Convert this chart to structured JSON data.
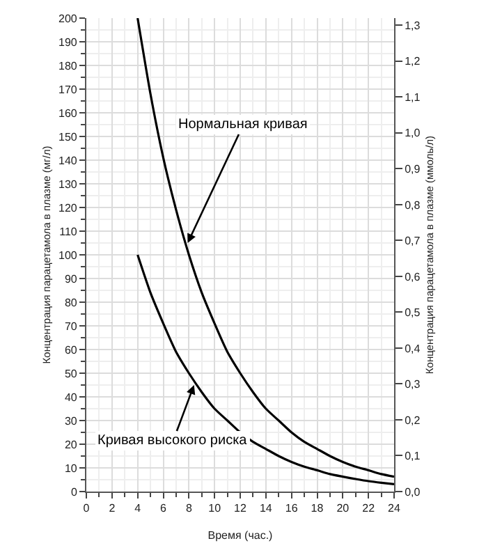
{
  "chart_data": {
    "type": "line",
    "xlabel": "Время (час.)",
    "ylabel": "Концентрация парацетамола в плазме (мг/л)",
    "y2label": "Концентрация парацетамола в плазме (ммоль/л)",
    "x": [
      4,
      5,
      6,
      7,
      8,
      9,
      10,
      11,
      12,
      13,
      14,
      15,
      16,
      17,
      18,
      19,
      20,
      21,
      22,
      23,
      24
    ],
    "series": [
      {
        "color": "#000000",
        "values": [
          200,
          168,
          141,
          119,
          100,
          84,
          71,
          59,
          50,
          42,
          35,
          30,
          25,
          21,
          18,
          15,
          12.5,
          10.5,
          9,
          7.4,
          6.3
        ]
      },
      {
        "color": "#000000",
        "values": [
          100,
          84,
          71,
          59,
          50,
          42,
          35,
          30,
          25,
          21,
          18,
          15,
          12.5,
          10.5,
          9,
          7.4,
          6.3,
          5.3,
          4.4,
          3.7,
          3.1
        ]
      }
    ],
    "annotations": [
      {
        "text": "Нормальная кривая",
        "x": 7.9,
        "y": 105
      },
      {
        "text": "Кривая высокого риска",
        "x": 8.4,
        "y": 45
      }
    ],
    "xlim": [
      0,
      24
    ],
    "xticks": [
      0,
      2,
      4,
      6,
      8,
      10,
      12,
      14,
      16,
      18,
      20,
      22,
      24
    ],
    "ylim": [
      0,
      200
    ],
    "yticks": [
      0,
      10,
      20,
      30,
      40,
      50,
      60,
      70,
      80,
      90,
      100,
      110,
      120,
      130,
      140,
      150,
      160,
      170,
      180,
      190,
      200
    ],
    "y2lim": [
      0,
      1.32
    ],
    "y2ticks": [
      {
        "value": 0,
        "label": "0,0"
      },
      {
        "value": 0.1,
        "label": "0,1"
      },
      {
        "value": 0.2,
        "label": "0,2"
      },
      {
        "value": 0.3,
        "label": "0,3"
      },
      {
        "value": 0.4,
        "label": "0,4"
      },
      {
        "value": 0.5,
        "label": "0,5"
      },
      {
        "value": 0.6,
        "label": "0,6"
      },
      {
        "value": 0.7,
        "label": "0,7"
      },
      {
        "value": 0.8,
        "label": "0,8"
      },
      {
        "value": 0.9,
        "label": "0,9"
      },
      {
        "value": 1.0,
        "label": "1,0"
      },
      {
        "value": 1.1,
        "label": "1,1"
      },
      {
        "value": 1.2,
        "label": "1,2"
      },
      {
        "value": 1.3,
        "label": "1,3"
      }
    ],
    "grid": true,
    "marker": "none",
    "line_style": "solid"
  }
}
